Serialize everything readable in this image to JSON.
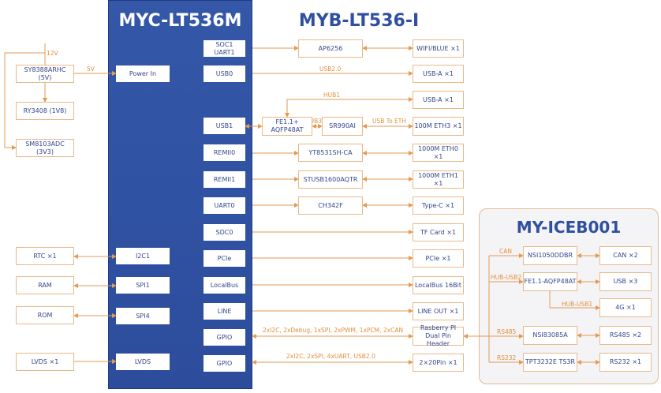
{
  "titles": {
    "core": "MYC-LT536M",
    "carrier": "MYB-LT536-I",
    "expansion": "MY-ICEB001"
  },
  "power": {
    "input": "12V",
    "out5v": "5V",
    "sy8388": "SY8388ARHC (5V)",
    "ry3408": "RY3408 (1V8)",
    "sm8103": "SM8103ADC (3V3)"
  },
  "core_left": {
    "power_in": "Power In",
    "i2c1": "I2C1",
    "spi1": "SPI1",
    "spi4": "SPI4",
    "lvds": "LVDS"
  },
  "core_right": {
    "soc1": "SOC1\nUART1",
    "usb0": "USB0",
    "usb1": "USB1",
    "remii0": "REMII0",
    "remii1": "REMII1",
    "uart0": "UART0",
    "sdc0": "SDC0",
    "pcie": "PCIe",
    "localbus": "LocalBus",
    "line": "LINE",
    "gpio1": "GPIO",
    "gpio2": "GPIO"
  },
  "left_periph": {
    "rtc": "RTC ×1",
    "ram": "RAM",
    "rom": "ROM",
    "lvds": "LVDS ×1"
  },
  "chips": {
    "ap6256": "AP6256",
    "fe11": "FE1.1+\nAQFP48AT",
    "sr990": "SR990AI",
    "yt8531": "YT8531SH-CA",
    "stusb": "STUSB1600AQTR",
    "ch342": "CH342F"
  },
  "ports": {
    "wifi": "WIFI/BLUE ×1",
    "usba1": "USB-A ×1",
    "usba2": "USB-A ×1",
    "eth3": "100M ETH3 ×1",
    "eth0": "1000M ETH0 ×1",
    "eth1": "1000M ETH1 ×1",
    "typec": "Type-C ×1",
    "tf": "TF Card ×1",
    "pcie": "PCIe ×1",
    "localbus": "LocalBus 16Bit",
    "lineout": "LINE OUT ×1",
    "rpi": "Rasberry PI\nDual Pin Header",
    "pin40": "2×20Pin ×1"
  },
  "line_labels": {
    "usb20": "USB2.0",
    "hub1": "HUB1",
    "hub3": "HUB3",
    "usb_eth": "USB To ETH",
    "gpio1": "2xI2C, 2xDebug, 1xSPI, 2xPWM, 1xPCM, 2xCAN",
    "gpio2": "2xI2C, 2xSPI, 4xUART, USB2.0"
  },
  "expansion": {
    "nsi1050": "NSI1050DDBR",
    "fe11": "FE1.1-AQFP48AT",
    "nsi83085": "NSI83085A",
    "tpt3232": "TPT3232E TS3R",
    "can": "CAN ×2",
    "usb": "USB ×3",
    "g4": "4G ×1",
    "rs485": "RS485 ×2",
    "rs232": "RS232 ×1",
    "labels": {
      "can": "CAN",
      "hub_usb2": "HUB-USB2",
      "hub_usb1": "HUB-USB1",
      "rs485": "RS485",
      "rs232": "RS232"
    }
  },
  "colors": {
    "core_blue": "#3457a8",
    "title_blue": "#2f4f9f",
    "line_orange": "#e39a55",
    "box_border": "#e8b98a"
  }
}
